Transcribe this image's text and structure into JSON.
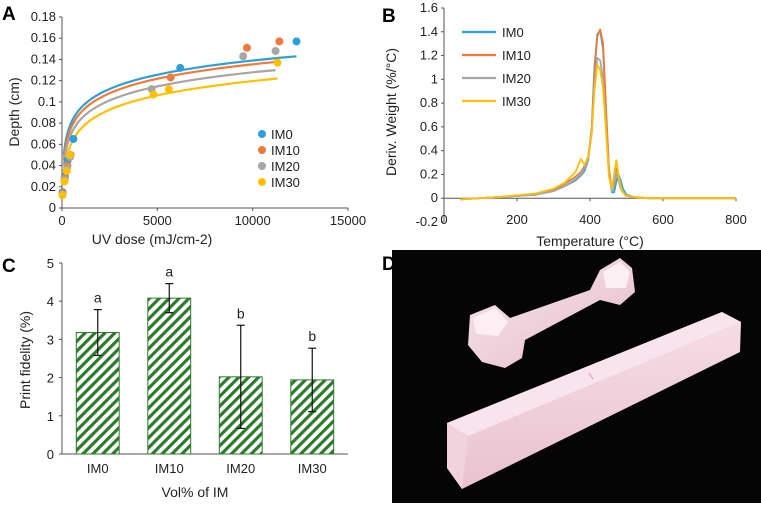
{
  "chart_data": [
    {
      "panel": "A",
      "type": "scatter",
      "title": "",
      "xlabel": "UV dose (mJ/cm-2)",
      "ylabel": "Depth (cm)",
      "xlim": [
        0,
        15000
      ],
      "ylim": [
        0,
        0.18
      ],
      "xticks": [
        0,
        5000,
        10000,
        15000
      ],
      "yticks": [
        0,
        0.02,
        0.04,
        0.06,
        0.08,
        0.1,
        0.12,
        0.14,
        0.16,
        0.18
      ],
      "xtick_labels": [
        "0",
        "5000",
        "10000",
        "15000"
      ],
      "ytick_labels": [
        "0",
        "0.02",
        "0.04",
        "0.06",
        "0.08",
        "0.1",
        "0.12",
        "0.14",
        "0.16",
        "0.18"
      ],
      "legend_position": "lower-right",
      "fit": "logarithmic",
      "series": [
        {
          "name": "IM0",
          "color": "#2e9fd9",
          "points": [
            [
              30,
              0.015
            ],
            [
              150,
              0.03
            ],
            [
              300,
              0.045
            ],
            [
              600,
              0.065
            ],
            [
              6200,
              0.132
            ],
            [
              12300,
              0.157
            ]
          ],
          "fit_x_range": [
            100,
            12300
          ],
          "fit_start_value": 0.05,
          "fit_end_value": 0.143
        },
        {
          "name": "IM10",
          "color": "#f07a3a",
          "points": [
            [
              30,
              0.014
            ],
            [
              140,
              0.028
            ],
            [
              280,
              0.04
            ],
            [
              450,
              0.05
            ],
            [
              5700,
              0.123
            ],
            [
              9700,
              0.151
            ],
            [
              11400,
              0.157
            ]
          ],
          "fit_x_range": [
            100,
            11400
          ],
          "fit_start_value": 0.045,
          "fit_end_value": 0.138
        },
        {
          "name": "IM20",
          "color": "#a6a6a6",
          "points": [
            [
              30,
              0.013
            ],
            [
              140,
              0.027
            ],
            [
              270,
              0.038
            ],
            [
              420,
              0.048
            ],
            [
              4700,
              0.112
            ],
            [
              9500,
              0.143
            ],
            [
              11200,
              0.148
            ]
          ],
          "fit_x_range": [
            100,
            11200
          ],
          "fit_start_value": 0.04,
          "fit_end_value": 0.13
        },
        {
          "name": "IM30",
          "color": "#ffc000",
          "points": [
            [
              30,
              0.012
            ],
            [
              130,
              0.025
            ],
            [
              250,
              0.035
            ],
            [
              400,
              0.05
            ],
            [
              4800,
              0.107
            ],
            [
              5600,
              0.112
            ],
            [
              11300,
              0.137
            ]
          ],
          "fit_x_range": [
            100,
            11300
          ],
          "fit_start_value": 0.03,
          "fit_end_value": 0.122
        }
      ]
    },
    {
      "panel": "B",
      "type": "line",
      "title": "",
      "xlabel": "Temperature (°C)",
      "ylabel": "Deriv. Weight (%/°C)",
      "xlim": [
        0,
        800
      ],
      "ylim": [
        -0.2,
        1.6
      ],
      "xticks": [
        0,
        200,
        400,
        600,
        800
      ],
      "yticks": [
        -0.2,
        0,
        0.2,
        0.4,
        0.6,
        0.8,
        1,
        1.2,
        1.4,
        1.6
      ],
      "xtick_labels": [
        "0",
        "200",
        "400",
        "600",
        "800"
      ],
      "ytick_labels": [
        "-0.2",
        "0",
        "0.2",
        "0.4",
        "0.6",
        "0.8",
        "1",
        "1.2",
        "1.4",
        "1.6"
      ],
      "legend_position": "top-left",
      "x": [
        45,
        150,
        250,
        300,
        330,
        360,
        375,
        385,
        395,
        405,
        412,
        420,
        428,
        436,
        444,
        452,
        460,
        466,
        472,
        478,
        484,
        490,
        500,
        520,
        560,
        620,
        700,
        800
      ],
      "series": [
        {
          "name": "IM0",
          "color": "#2e9fd9",
          "values": [
            -0.01,
            0.01,
            0.03,
            0.06,
            0.1,
            0.15,
            0.19,
            0.23,
            0.32,
            0.6,
            1.1,
            1.38,
            1.41,
            1.25,
            0.7,
            0.22,
            0.05,
            0.05,
            0.14,
            0.2,
            0.15,
            0.08,
            0.03,
            0.01,
            0.0,
            0.0,
            0.0,
            0.0
          ]
        },
        {
          "name": "IM10",
          "color": "#f07a3a",
          "values": [
            -0.01,
            0.01,
            0.03,
            0.07,
            0.12,
            0.18,
            0.22,
            0.27,
            0.35,
            0.58,
            1.05,
            1.36,
            1.42,
            1.3,
            0.75,
            0.25,
            0.06,
            0.12,
            0.25,
            0.16,
            0.09,
            0.05,
            0.02,
            0.01,
            0.0,
            0.0,
            0.0,
            0.0
          ]
        },
        {
          "name": "IM20",
          "color": "#a6a6a6",
          "values": [
            -0.01,
            0.01,
            0.03,
            0.06,
            0.1,
            0.16,
            0.2,
            0.25,
            0.33,
            0.55,
            0.95,
            1.18,
            1.16,
            1.0,
            0.6,
            0.2,
            0.06,
            0.1,
            0.22,
            0.15,
            0.08,
            0.05,
            0.02,
            0.01,
            0.0,
            0.0,
            0.0,
            0.0
          ]
        },
        {
          "name": "IM30",
          "color": "#ffc000",
          "values": [
            -0.01,
            0.01,
            0.04,
            0.08,
            0.13,
            0.22,
            0.33,
            0.28,
            0.35,
            0.55,
            0.9,
            1.12,
            1.08,
            0.92,
            0.55,
            0.18,
            0.08,
            0.2,
            0.32,
            0.2,
            0.1,
            0.05,
            0.02,
            0.01,
            0.0,
            0.0,
            0.0,
            0.0
          ]
        }
      ]
    },
    {
      "panel": "C",
      "type": "bar",
      "title": "",
      "xlabel": "Vol% of IM",
      "ylabel": "Print fidelity (%)",
      "ylim": [
        0,
        5
      ],
      "yticks": [
        0,
        1,
        2,
        3,
        4,
        5
      ],
      "ytick_labels": [
        "0",
        "1",
        "2",
        "3",
        "4",
        "5"
      ],
      "categories": [
        "IM0",
        "IM10",
        "IM20",
        "IM30"
      ],
      "values": [
        3.18,
        4.08,
        2.02,
        1.94
      ],
      "errors": [
        0.6,
        0.38,
        1.35,
        0.83
      ],
      "significance": [
        "a",
        "a",
        "b",
        "b"
      ],
      "bar_color": "#2d7a2d",
      "bar_pattern": "diagonal-hatch"
    },
    {
      "panel": "D",
      "type": "photo",
      "description_visible": false
    }
  ],
  "panels": {
    "A": "A",
    "B": "B",
    "C": "C",
    "D": "D"
  }
}
